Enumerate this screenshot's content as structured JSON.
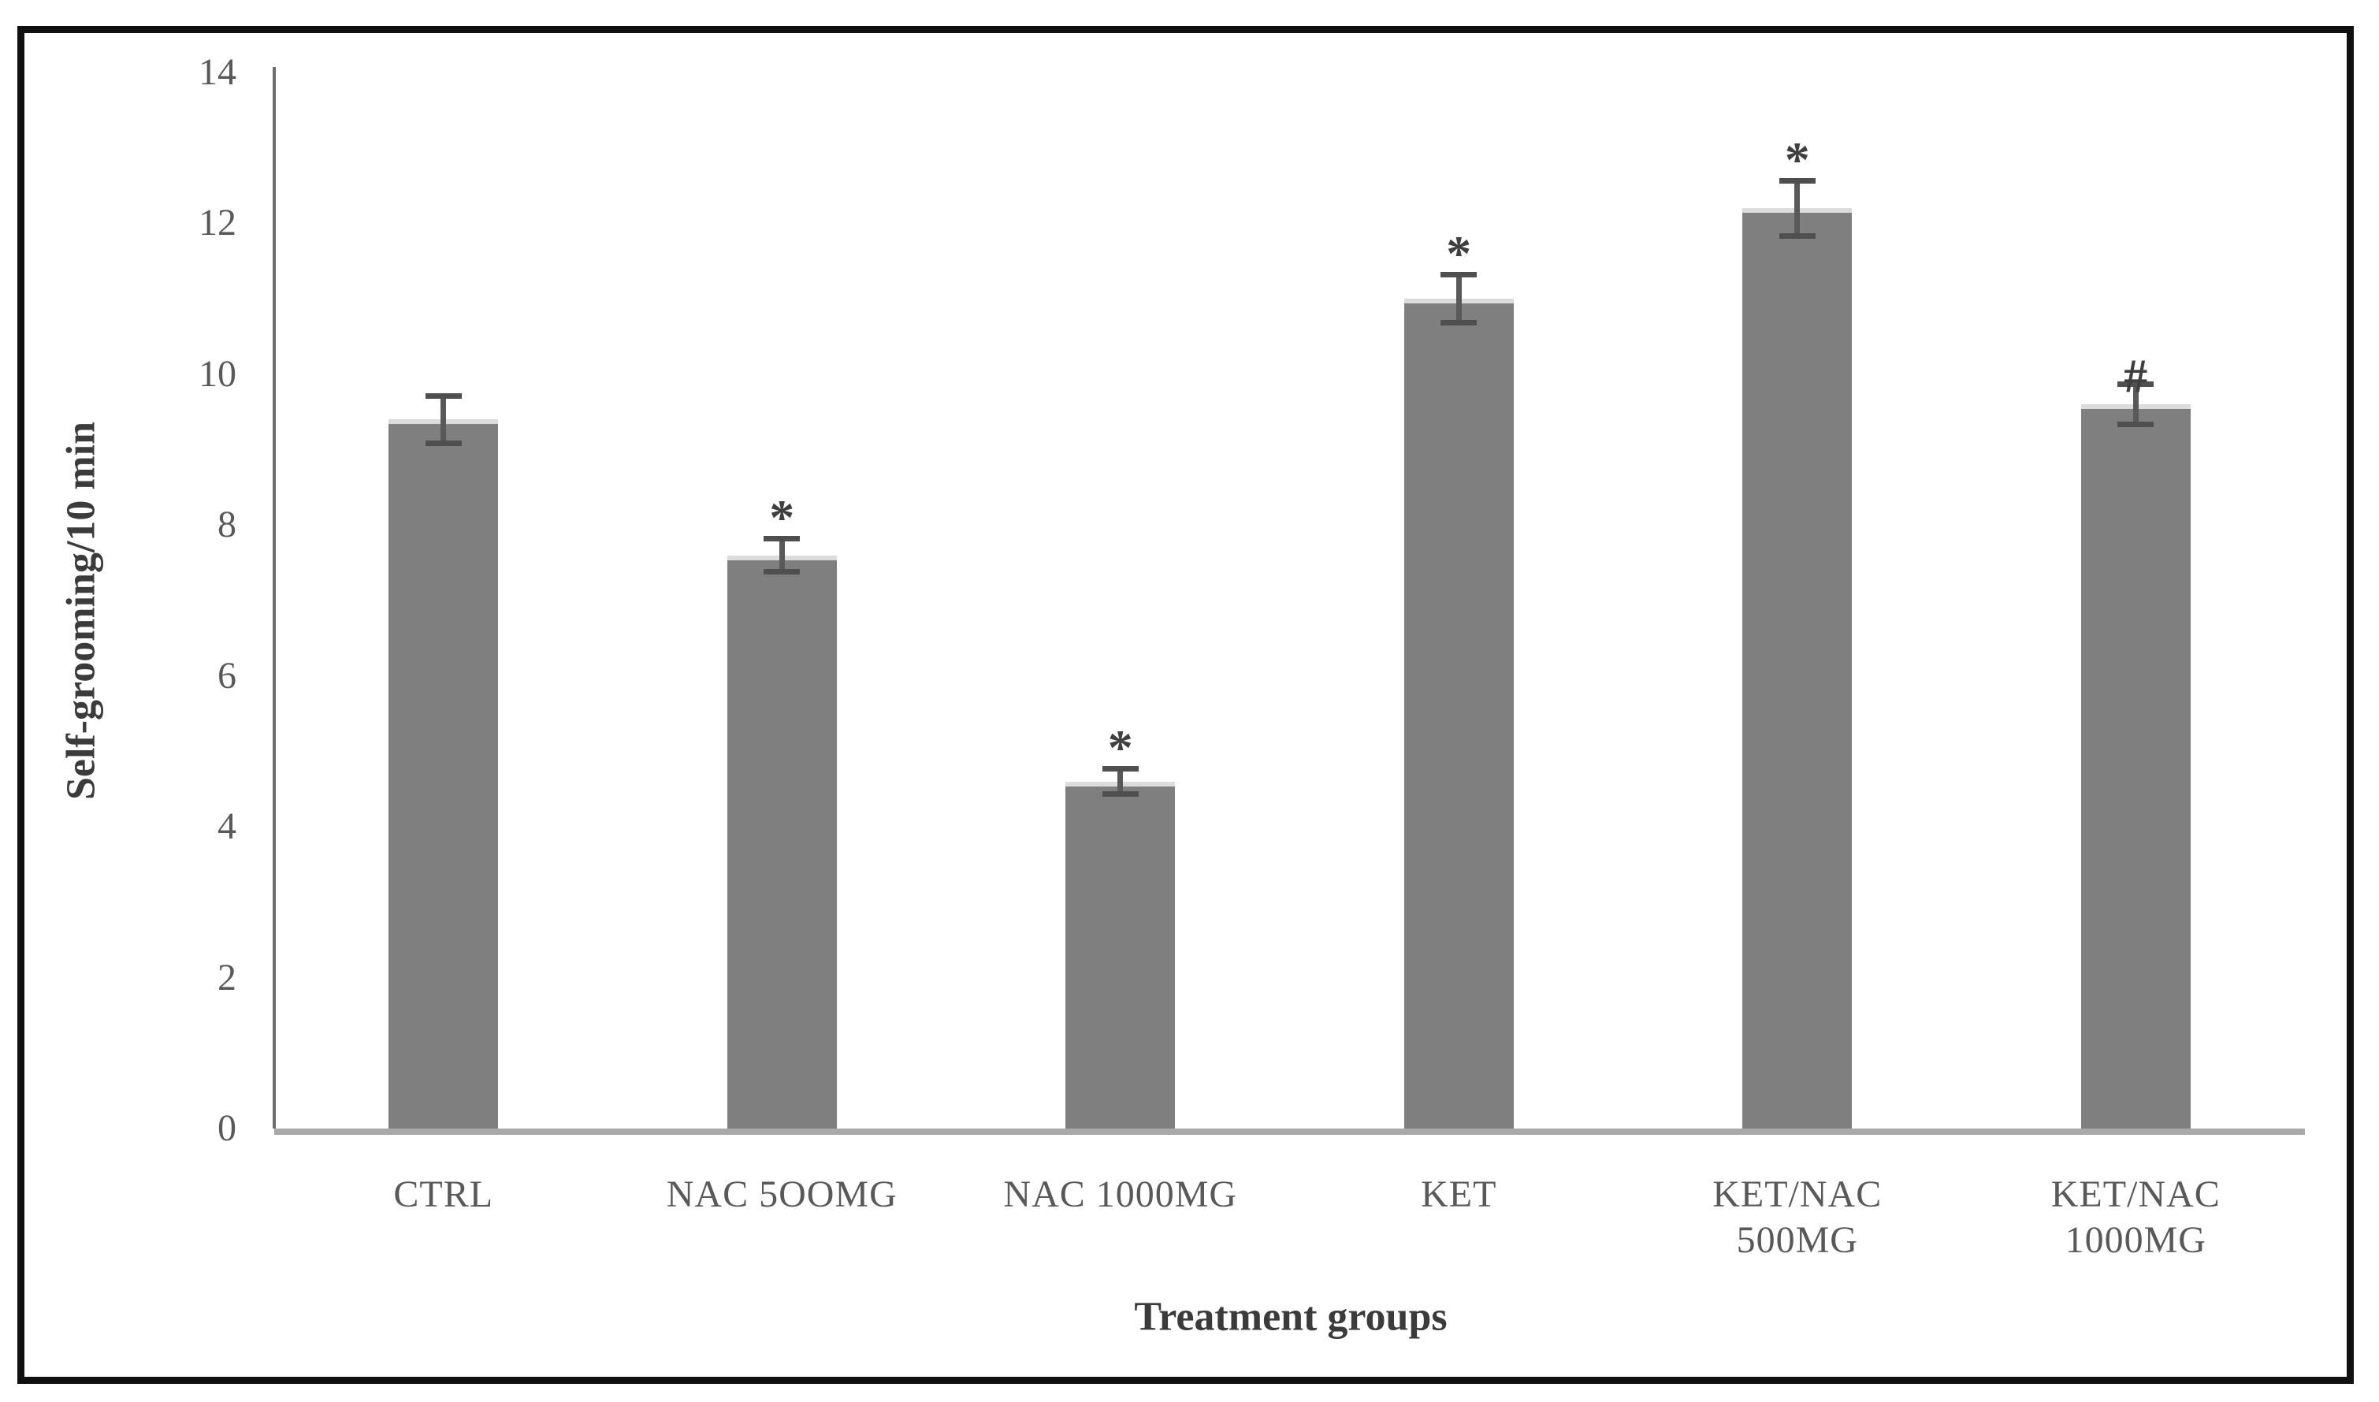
{
  "figure": {
    "background": "#ffffff",
    "border_color": "#101010"
  },
  "chart_data": {
    "type": "bar",
    "title": "",
    "xlabel": "Treatment groups",
    "ylabel": "Self-grooming/10 min",
    "categories": [
      "CTRL",
      "NAC 5OOMG",
      "NAC 1000MG",
      "KET",
      "KET/NAC 500MG",
      "KET/NAC 1000MG"
    ],
    "category_label_lines": [
      [
        "CTRL"
      ],
      [
        "NAC 5OOMG"
      ],
      [
        "NAC 1000MG"
      ],
      [
        "KET"
      ],
      [
        "KET/NAC",
        "500MG"
      ],
      [
        "KET/NAC",
        "1000MG"
      ]
    ],
    "values": [
      9.4,
      7.6,
      4.6,
      11.0,
      12.2,
      9.6
    ],
    "errors": [
      0.3,
      0.2,
      0.15,
      0.3,
      0.35,
      0.25
    ],
    "annotations": [
      "",
      "*",
      "*",
      "*",
      "*",
      "#"
    ],
    "y_ticks": [
      0,
      2,
      4,
      6,
      8,
      10,
      12,
      14
    ],
    "ylim": [
      0,
      14
    ],
    "grid": false,
    "legend": null,
    "colors": {
      "bar_fill": "#7f7f7f",
      "bar_top_edge": "#dcdcdc",
      "error_bar": "#595959",
      "axis_line": "#6e6e6e",
      "baseline": "#a9a9a9",
      "tick_label": "#595959",
      "axis_title": "#3b3b3b"
    }
  }
}
